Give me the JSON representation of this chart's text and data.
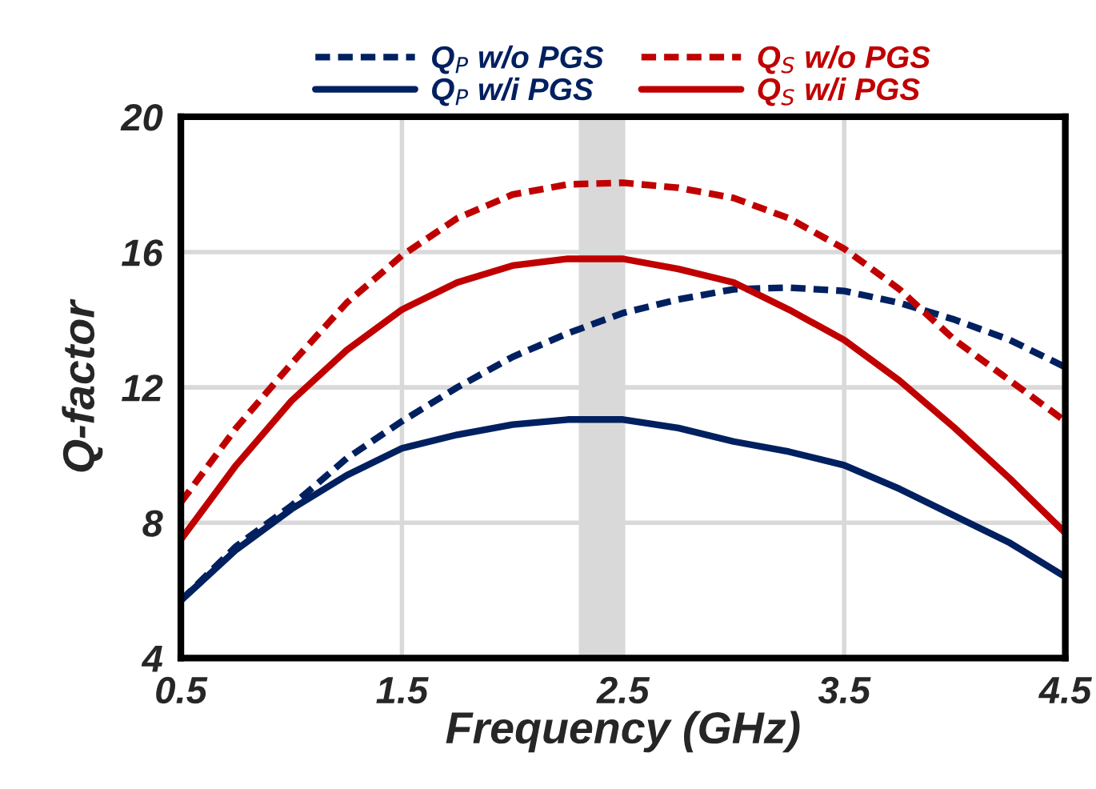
{
  "chart_data": {
    "type": "line",
    "xlabel": "Frequency (GHz)",
    "ylabel": "Q-factor",
    "x": [
      0.5,
      0.75,
      1.0,
      1.25,
      1.5,
      1.75,
      2.0,
      2.25,
      2.5,
      2.75,
      3.0,
      3.25,
      3.5,
      3.75,
      4.0,
      4.25,
      4.5
    ],
    "series": [
      {
        "name": "Q$_{P}$ w/o PGS",
        "color": "#002060",
        "line_style": "dashed",
        "values": [
          5.7,
          7.3,
          8.5,
          9.9,
          11.0,
          12.0,
          12.9,
          13.6,
          14.2,
          14.6,
          14.9,
          14.95,
          14.85,
          14.5,
          14.0,
          13.4,
          12.6
        ]
      },
      {
        "name": "Q$_{P}$ w/i PGS",
        "color": "#002060",
        "line_style": "solid",
        "values": [
          5.7,
          7.2,
          8.4,
          9.4,
          10.2,
          10.6,
          10.9,
          11.05,
          11.05,
          10.8,
          10.4,
          10.1,
          9.7,
          9.0,
          8.2,
          7.4,
          6.4
        ]
      },
      {
        "name": "Q$_{S}$ w/o PGS",
        "color": "#c00000",
        "line_style": "dashed",
        "values": [
          8.6,
          10.8,
          12.7,
          14.5,
          15.9,
          17.0,
          17.7,
          18.0,
          18.05,
          17.9,
          17.6,
          17.0,
          16.1,
          14.9,
          13.4,
          12.2,
          11.0
        ]
      },
      {
        "name": "Q$_{S}$ w/i PGS",
        "color": "#c00000",
        "line_style": "solid",
        "values": [
          7.5,
          9.7,
          11.6,
          13.1,
          14.3,
          15.1,
          15.6,
          15.8,
          15.8,
          15.5,
          15.1,
          14.3,
          13.4,
          12.2,
          10.8,
          9.3,
          7.7
        ]
      }
    ],
    "xlim": [
      0.5,
      4.5
    ],
    "xticks": [
      0.5,
      1.5,
      2.5,
      3.5,
      4.5
    ],
    "ylim": [
      4,
      20
    ],
    "yticks": [
      4,
      8,
      12,
      16,
      20
    ],
    "bands": [
      {
        "axis": "x",
        "from": 2.3,
        "to": 2.5,
        "color": "#d9d9d9"
      }
    ],
    "grid": true,
    "legend": "top",
    "marker": "none"
  }
}
